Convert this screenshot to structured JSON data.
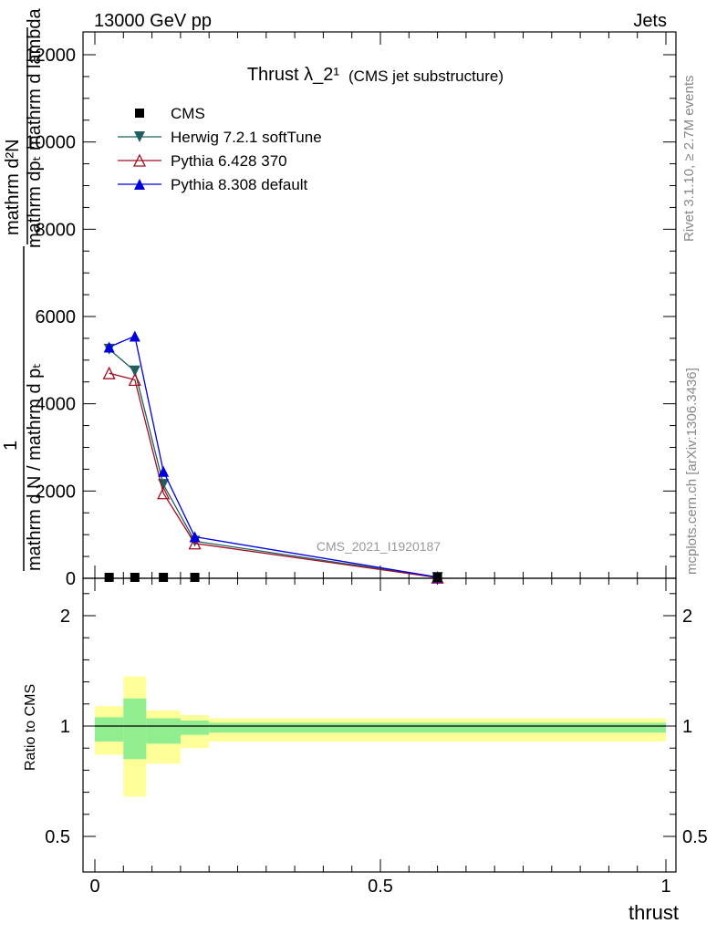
{
  "header": {
    "left": "13000 GeV pp",
    "right": "Jets"
  },
  "side": {
    "rivet": "Rivet 3.1.10, ≥ 2.7M events",
    "mcplots": "mcplots.cern.ch [arXiv:1306.3436]"
  },
  "ylabel_lines": [
    "mathrm d²N",
    "mathrm dpₜ mathrm d lambda",
    "1",
    "mathrm d N / mathrm d pₜ"
  ],
  "colors": {
    "CMS": "#000000",
    "Herwig": "#1f5f5f",
    "Pythia6": "#a01020",
    "Pythia8": "#0000dd",
    "band_outer": "#ffff99",
    "band_inner": "#90ee90"
  },
  "chart_data": [
    {
      "type": "line",
      "title": "Thrust λ_2¹",
      "subtitle": "(CMS jet substructure)",
      "watermark": "CMS_2021_I1920187",
      "xlabel": "",
      "ylabel": "",
      "xlim": [
        -0.02,
        1.02
      ],
      "ylim": [
        0,
        12500
      ],
      "yticks": [
        0,
        2000,
        4000,
        6000,
        8000,
        10000,
        12000
      ],
      "ytick_labels": [
        "0",
        "2000",
        "4000",
        "6000",
        "8000",
        "10000",
        "12000"
      ],
      "legend_position": "top-left",
      "series": [
        {
          "name": "CMS",
          "marker": "square",
          "x": [
            0.025,
            0.07,
            0.12,
            0.175,
            0.6
          ],
          "y": [
            0,
            0,
            0,
            0,
            0
          ]
        },
        {
          "name": "Herwig 7.2.1 softTune",
          "marker": "triangle-down",
          "x": [
            0.025,
            0.07,
            0.12,
            0.175,
            0.6
          ],
          "y": [
            5250,
            4750,
            2150,
            850,
            20
          ]
        },
        {
          "name": "Pythia 6.428 370",
          "marker": "triangle-open",
          "x": [
            0.025,
            0.07,
            0.12,
            0.175,
            0.6
          ],
          "y": [
            4700,
            4550,
            1950,
            800,
            15
          ]
        },
        {
          "name": "Pythia 8.308 default",
          "marker": "triangle-up",
          "x": [
            0.025,
            0.07,
            0.12,
            0.175,
            0.6
          ],
          "y": [
            5300,
            5550,
            2450,
            950,
            25
          ]
        }
      ]
    },
    {
      "type": "area",
      "ylabel": "Ratio to CMS",
      "xlabel": "thrust",
      "xlim": [
        -0.02,
        1.02
      ],
      "ylim": [
        0.35,
        2.35
      ],
      "yticks": [
        0.5,
        1,
        2
      ],
      "ytick_labels": [
        "0.5",
        "1",
        "2"
      ],
      "xticks": [
        0,
        0.5,
        1
      ],
      "xtick_labels": [
        "0",
        "0.5",
        "1"
      ],
      "bins": [
        {
          "lo": 0.0,
          "hi": 0.05,
          "outer": [
            0.87,
            1.18
          ],
          "inner": [
            0.93,
            1.08
          ]
        },
        {
          "lo": 0.05,
          "hi": 0.09,
          "outer": [
            0.68,
            1.45
          ],
          "inner": [
            0.85,
            1.25
          ]
        },
        {
          "lo": 0.09,
          "hi": 0.15,
          "outer": [
            0.83,
            1.14
          ],
          "inner": [
            0.92,
            1.07
          ]
        },
        {
          "lo": 0.15,
          "hi": 0.2,
          "outer": [
            0.9,
            1.1
          ],
          "inner": [
            0.96,
            1.05
          ]
        },
        {
          "lo": 0.2,
          "hi": 1.0,
          "outer": [
            0.93,
            1.07
          ],
          "inner": [
            0.97,
            1.03
          ]
        }
      ],
      "reference": 1
    }
  ]
}
